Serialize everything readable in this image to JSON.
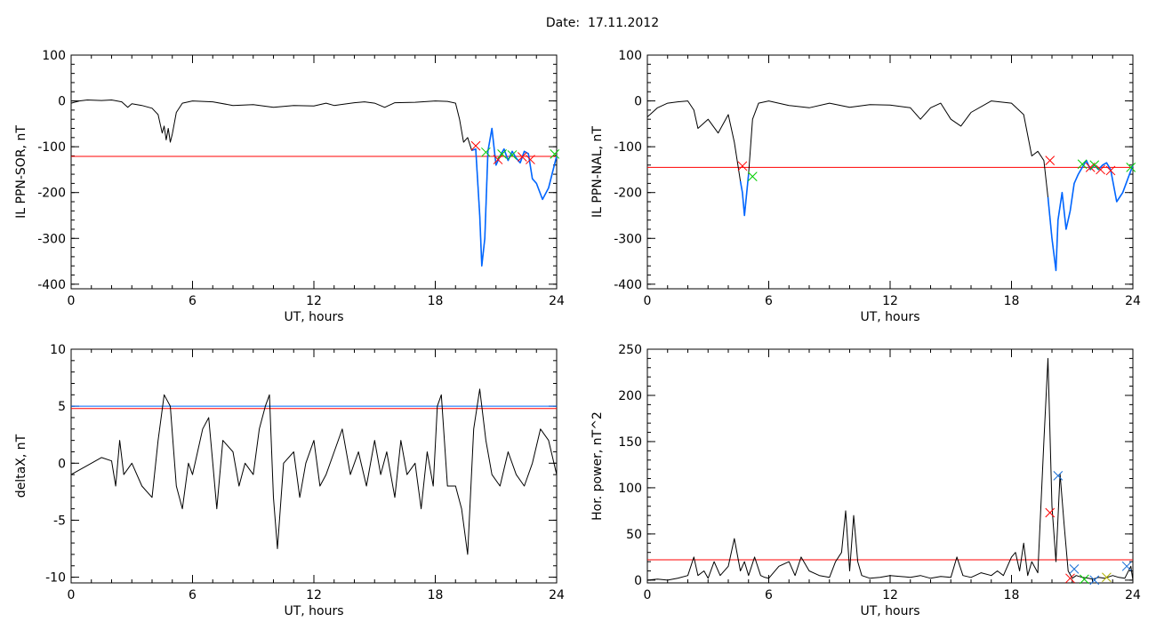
{
  "figure": {
    "title": "Date:  17.11.2012"
  },
  "colors": {
    "trace": "#000000",
    "threshold": "#ff0000",
    "highlight": "#0066ff",
    "marker_red": "#ff0000",
    "marker_green": "#00cc00",
    "marker_blue": "#1a6fd6",
    "marker_yellow": "#b0b000"
  },
  "chart_data": [
    {
      "type": "line",
      "xlabel": "UT, hours",
      "ylabel": "IL PPN-SOR, nT",
      "xlim": [
        0,
        24
      ],
      "ylim": [
        -410,
        100
      ],
      "xticks": [
        0,
        6,
        12,
        18,
        24
      ],
      "yticks": [
        100,
        0,
        -100,
        -200,
        -300,
        -400
      ],
      "threshold": -121,
      "series": [
        {
          "x": [
            0,
            0.4,
            0.8,
            1.5,
            2,
            2.5,
            2.8,
            3,
            3.5,
            4,
            4.3,
            4.5,
            4.6,
            4.7,
            4.8,
            4.9,
            5,
            5.2,
            5.5,
            6,
            7,
            8,
            9,
            10,
            11,
            12,
            12.6,
            13,
            14,
            14.5,
            15,
            15.5,
            16,
            17,
            18,
            18.6,
            19,
            19.2,
            19.4,
            19.6,
            19.8,
            20,
            20.2,
            20.3,
            20.45,
            20.6,
            20.8,
            21,
            21.2,
            21.4,
            21.6,
            21.8,
            22,
            22.2,
            22.4,
            22.6,
            22.8,
            23,
            23.3,
            23.6,
            24
          ],
          "y": [
            -5,
            0,
            2,
            1,
            2,
            -2,
            -14,
            -6,
            -10,
            -16,
            -30,
            -70,
            -55,
            -85,
            -60,
            -90,
            -72,
            -25,
            -5,
            0,
            -2,
            -10,
            -8,
            -14,
            -10,
            -11,
            -5,
            -10,
            -4,
            -2,
            -5,
            -14,
            -4,
            -3,
            0,
            -1,
            -5,
            -40,
            -90,
            -80,
            -108,
            -105,
            -250,
            -360,
            -300,
            -110,
            -60,
            -140,
            -120,
            -105,
            -130,
            -110,
            -125,
            -135,
            -110,
            -115,
            -170,
            -180,
            -215,
            -190,
            -120
          ]
        },
        {
          "x": [
            19.8,
            20,
            20.2,
            20.3,
            20.45,
            20.6,
            20.8,
            21,
            21.2,
            21.4,
            21.6,
            21.8,
            22,
            22.2,
            22.4,
            22.6,
            22.8,
            23,
            23.3,
            23.6,
            24
          ],
          "y": [
            -108,
            -105,
            -250,
            -360,
            -300,
            -110,
            -60,
            -140,
            -120,
            -105,
            -130,
            -110,
            -125,
            -135,
            -110,
            -115,
            -170,
            -180,
            -215,
            -190,
            -120
          ]
        }
      ],
      "markers": [
        {
          "x": 20.0,
          "y": -98,
          "color": "red"
        },
        {
          "x": 20.5,
          "y": -112,
          "color": "green"
        },
        {
          "x": 21.1,
          "y": -128,
          "color": "red"
        },
        {
          "x": 21.3,
          "y": -116,
          "color": "green"
        },
        {
          "x": 21.8,
          "y": -118,
          "color": "green"
        },
        {
          "x": 22.3,
          "y": -122,
          "color": "red"
        },
        {
          "x": 22.7,
          "y": -128,
          "color": "red"
        },
        {
          "x": 23.9,
          "y": -116,
          "color": "green"
        }
      ]
    },
    {
      "type": "line",
      "xlabel": "UT, hours",
      "ylabel": "IL PPN-NAL, nT",
      "xlim": [
        0,
        24
      ],
      "ylim": [
        -410,
        100
      ],
      "xticks": [
        0,
        6,
        12,
        18,
        24
      ],
      "yticks": [
        100,
        0,
        -100,
        -200,
        -300,
        -400
      ],
      "threshold": -145,
      "series": [
        {
          "x": [
            0,
            0.5,
            1,
            1.5,
            2,
            2.3,
            2.5,
            3,
            3.5,
            4,
            4.3,
            4.6,
            4.7,
            4.8,
            5,
            5.2,
            5.5,
            6,
            7,
            8,
            9,
            10,
            11,
            12,
            13,
            13.5,
            14,
            14.5,
            15,
            15.5,
            16,
            17,
            18,
            18.6,
            19,
            19.3,
            19.6,
            19.8,
            20,
            20.2,
            20.3,
            20.5,
            20.7,
            20.9,
            21.1,
            21.3,
            21.5,
            21.7,
            21.9,
            22.1,
            22.3,
            22.5,
            22.7,
            22.9,
            23.2,
            23.5,
            24
          ],
          "y": [
            -35,
            -15,
            -5,
            -2,
            0,
            -20,
            -60,
            -40,
            -70,
            -30,
            -90,
            -175,
            -200,
            -250,
            -160,
            -40,
            -5,
            0,
            -10,
            -15,
            -5,
            -14,
            -8,
            -9,
            -15,
            -40,
            -15,
            -5,
            -40,
            -55,
            -25,
            0,
            -5,
            -30,
            -120,
            -110,
            -130,
            -210,
            -300,
            -370,
            -260,
            -200,
            -280,
            -240,
            -180,
            -160,
            -145,
            -130,
            -150,
            -140,
            -150,
            -140,
            -135,
            -150,
            -220,
            -200,
            -140
          ]
        },
        {
          "x": [
            4.6,
            4.7,
            4.8,
            5
          ],
          "y": [
            -175,
            -200,
            -250,
            -160
          ]
        },
        {
          "x": [
            19.8,
            20,
            20.2,
            20.3,
            20.5,
            20.7,
            20.9,
            21.1,
            21.3,
            21.5,
            21.7,
            21.9,
            22.1,
            22.3,
            22.5,
            22.7,
            22.9,
            23.2,
            23.5,
            24
          ],
          "y": [
            -210,
            -300,
            -370,
            -260,
            -200,
            -280,
            -240,
            -180,
            -160,
            -145,
            -130,
            -150,
            -140,
            -150,
            -140,
            -135,
            -150,
            -220,
            -200,
            -140
          ]
        }
      ],
      "markers": [
        {
          "x": 4.7,
          "y": -142,
          "color": "red"
        },
        {
          "x": 5.2,
          "y": -165,
          "color": "green"
        },
        {
          "x": 19.9,
          "y": -130,
          "color": "red"
        },
        {
          "x": 21.5,
          "y": -138,
          "color": "green"
        },
        {
          "x": 21.9,
          "y": -145,
          "color": "red"
        },
        {
          "x": 22.1,
          "y": -140,
          "color": "green"
        },
        {
          "x": 22.4,
          "y": -150,
          "color": "red"
        },
        {
          "x": 22.9,
          "y": -152,
          "color": "red"
        },
        {
          "x": 23.9,
          "y": -145,
          "color": "green"
        }
      ]
    },
    {
      "type": "line",
      "xlabel": "UT, hours",
      "ylabel": "deltaX, nT",
      "xlim": [
        0,
        24
      ],
      "ylim": [
        -10.5,
        10
      ],
      "xticks": [
        0,
        6,
        12,
        18,
        24
      ],
      "yticks": [
        10,
        5,
        0,
        -5,
        -10
      ],
      "threshold": 4.8,
      "threshold_blue": 5.0,
      "series": [
        {
          "x": [
            0,
            0.5,
            1,
            1.5,
            2,
            2.2,
            2.4,
            2.6,
            3,
            3.5,
            4,
            4.3,
            4.6,
            4.9,
            5.2,
            5.5,
            5.8,
            6,
            6.5,
            6.8,
            7,
            7.2,
            7.5,
            8,
            8.3,
            8.6,
            9,
            9.3,
            9.6,
            9.8,
            10,
            10.2,
            10.5,
            11,
            11.3,
            11.6,
            12,
            12.3,
            12.6,
            13,
            13.4,
            13.8,
            14.2,
            14.6,
            15,
            15.3,
            15.6,
            16,
            16.3,
            16.6,
            17,
            17.3,
            17.6,
            17.9,
            18.1,
            18.3,
            18.6,
            19,
            19.3,
            19.6,
            19.9,
            20.2,
            20.5,
            20.8,
            21.2,
            21.6,
            22,
            22.4,
            22.8,
            23.2,
            23.6,
            24
          ],
          "y": [
            -1,
            -0.5,
            0,
            0.5,
            0.2,
            -2,
            2,
            -1,
            0,
            -2,
            -3,
            2,
            6,
            5,
            -2,
            -4,
            0,
            -1,
            3,
            4,
            0,
            -4,
            2,
            1,
            -2,
            0,
            -1,
            3,
            5,
            6,
            -3,
            -7.5,
            0,
            1,
            -3,
            0,
            2,
            -2,
            -1,
            1,
            3,
            -1,
            1,
            -2,
            2,
            -1,
            1,
            -3,
            2,
            -1,
            0,
            -4,
            1,
            -2,
            5,
            6,
            -2,
            -2,
            -4,
            -8,
            3,
            6.5,
            2,
            -1,
            -2,
            1,
            -1,
            -2,
            0,
            3,
            2,
            -1
          ]
        }
      ],
      "markers": []
    },
    {
      "type": "line",
      "xlabel": "UT, hours",
      "ylabel": "Hor. power, nT^2",
      "xlim": [
        0,
        24
      ],
      "ylim": [
        -3,
        250
      ],
      "xticks": [
        0,
        6,
        12,
        18,
        24
      ],
      "yticks": [
        250,
        200,
        150,
        100,
        50,
        0
      ],
      "threshold": 22,
      "series": [
        {
          "x": [
            0,
            0.5,
            1,
            1.5,
            2,
            2.3,
            2.5,
            2.8,
            3,
            3.3,
            3.6,
            4,
            4.3,
            4.6,
            4.8,
            5,
            5.3,
            5.6,
            5.8,
            6,
            6.5,
            7,
            7.3,
            7.6,
            8,
            8.5,
            9,
            9.3,
            9.6,
            9.8,
            10,
            10.2,
            10.4,
            10.6,
            11,
            11.5,
            12,
            12.5,
            13,
            13.5,
            14,
            14.5,
            15,
            15.3,
            15.6,
            16,
            16.5,
            17,
            17.3,
            17.6,
            18,
            18.2,
            18.4,
            18.6,
            18.8,
            19,
            19.3,
            19.6,
            19.8,
            20,
            20.2,
            20.4,
            20.6,
            20.8,
            21,
            21.2,
            21.5,
            21.8,
            22,
            22.3,
            22.6,
            23,
            23.3,
            23.6,
            23.9,
            24
          ],
          "y": [
            0,
            1,
            0,
            2,
            5,
            25,
            5,
            10,
            2,
            20,
            5,
            15,
            45,
            10,
            20,
            5,
            25,
            5,
            3,
            2,
            15,
            20,
            5,
            25,
            10,
            5,
            3,
            20,
            30,
            75,
            10,
            70,
            20,
            5,
            2,
            3,
            5,
            4,
            3,
            5,
            2,
            4,
            3,
            25,
            5,
            3,
            8,
            5,
            10,
            5,
            25,
            30,
            10,
            40,
            5,
            20,
            8,
            150,
            240,
            80,
            20,
            115,
            60,
            10,
            2,
            5,
            3,
            2,
            1,
            3,
            2,
            5,
            3,
            2,
            15,
            0
          ]
        }
      ],
      "markers": [
        {
          "x": 19.9,
          "y": 73,
          "color": "red"
        },
        {
          "x": 20.3,
          "y": 113,
          "color": "blue"
        },
        {
          "x": 20.9,
          "y": 2,
          "color": "red"
        },
        {
          "x": 21.1,
          "y": 12,
          "color": "blue"
        },
        {
          "x": 21.6,
          "y": 1,
          "color": "green"
        },
        {
          "x": 22.1,
          "y": 0,
          "color": "blue"
        },
        {
          "x": 22.7,
          "y": 3,
          "color": "yellow"
        },
        {
          "x": 23.7,
          "y": 15,
          "color": "blue"
        }
      ]
    }
  ]
}
